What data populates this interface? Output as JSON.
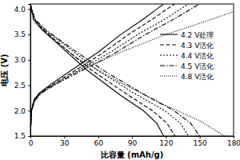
{
  "chart_data": {
    "type": "line",
    "x_label": "比容量 (mAh/g)",
    "y_label": "电压 (V)",
    "xlim": [
      0,
      180
    ],
    "xticks": [
      0,
      30,
      60,
      90,
      120,
      150,
      180
    ],
    "ylim": [
      1.5,
      4.1
    ],
    "yticks": [
      1.5,
      {
        "value": 2,
        "label": "2.0"
      },
      2.5,
      {
        "value": 3,
        "label": "3.0"
      },
      3.5,
      {
        "value": 4,
        "label": "4.0"
      }
    ],
    "legend": "upper right",
    "series": [
      {
        "name": "4.2 V处理",
        "color": "#000000",
        "line_style": "solid",
        "x": [
          0,
          1,
          3,
          8,
          20,
          40,
          60,
          80,
          100,
          112,
          118,
          null,
          0,
          3,
          10,
          30,
          50,
          80,
          100,
          112,
          118
        ],
        "values": [
          1.5,
          2.0,
          2.2,
          2.35,
          2.55,
          2.85,
          3.15,
          3.5,
          3.8,
          4.0,
          4.1,
          null,
          4.1,
          3.8,
          3.6,
          3.2,
          2.8,
          2.3,
          2.0,
          1.75,
          1.5
        ]
      },
      {
        "name": "4.3 V活化",
        "color": "#000000",
        "line_style": "dashed",
        "x": [
          0,
          1,
          3,
          9,
          22,
          44,
          65,
          87,
          108,
          121,
          128,
          null,
          0,
          3,
          11,
          32,
          54,
          87,
          108,
          121,
          128
        ],
        "values": [
          1.5,
          2.0,
          2.2,
          2.35,
          2.55,
          2.85,
          3.15,
          3.5,
          3.8,
          4.0,
          4.1,
          null,
          4.1,
          3.8,
          3.6,
          3.2,
          2.8,
          2.3,
          2.0,
          1.75,
          1.5
        ]
      },
      {
        "name": "4.4 V活化",
        "color": "#000000",
        "line_style": "dotted",
        "x": [
          0,
          1,
          4,
          9,
          24,
          47,
          71,
          95,
          119,
          133,
          140,
          null,
          0,
          4,
          12,
          36,
          59,
          95,
          119,
          133,
          140
        ],
        "values": [
          1.5,
          2.0,
          2.2,
          2.35,
          2.55,
          2.85,
          3.15,
          3.5,
          3.8,
          4.0,
          4.1,
          null,
          4.1,
          3.8,
          3.6,
          3.2,
          2.8,
          2.3,
          2.0,
          1.75,
          1.5
        ]
      },
      {
        "name": "4.5 V活化",
        "color": "#000000",
        "line_style": "dashdot",
        "x": [
          0,
          1,
          4,
          10,
          25,
          51,
          76,
          102,
          127,
          142,
          150,
          null,
          0,
          4,
          13,
          38,
          64,
          102,
          127,
          142,
          150
        ],
        "values": [
          1.5,
          2.0,
          2.2,
          2.35,
          2.55,
          2.85,
          3.15,
          3.5,
          3.8,
          4.0,
          4.1,
          null,
          4.1,
          3.8,
          3.6,
          3.2,
          2.8,
          2.3,
          2.0,
          1.75,
          1.5
        ]
      },
      {
        "name": "4.8 V活化",
        "color": "#000000",
        "line_style": "fine_dotted",
        "x": [
          0,
          1,
          4,
          15,
          40,
          80,
          120,
          150,
          180,
          null,
          0,
          3,
          15,
          40,
          80,
          120,
          150,
          172
        ],
        "values": [
          1.5,
          2.0,
          2.25,
          2.45,
          2.75,
          3.15,
          3.5,
          3.72,
          3.95,
          null,
          4.05,
          3.75,
          3.5,
          3.05,
          2.55,
          2.1,
          1.8,
          1.5
        ]
      }
    ]
  }
}
